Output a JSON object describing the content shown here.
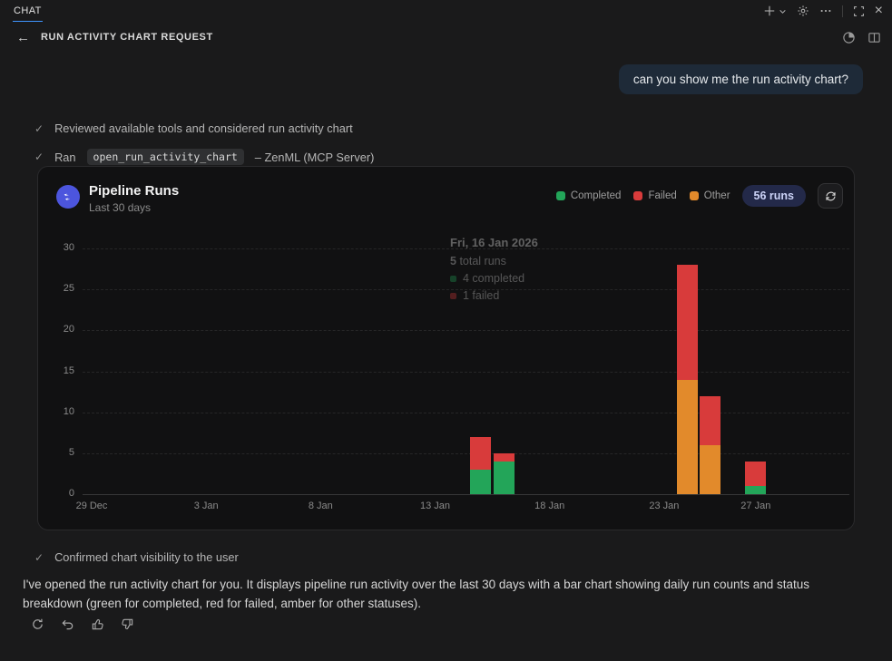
{
  "ui": {
    "colors": {
      "accent": "#3f95ff",
      "bubble_bg": "#1e2a38",
      "card_bg": "#111112",
      "badge_bg": "#232949",
      "badge_text": "#ccd3f7"
    }
  },
  "tabbar": {
    "tab": "CHAT"
  },
  "header": {
    "title": "RUN ACTIVITY CHART REQUEST",
    "back_icon": "←"
  },
  "chat": {
    "user_message": "can you show me the run activity chart?",
    "steps": {
      "0": {
        "text": "Reviewed available tools and considered run activity chart"
      },
      "1": {
        "prefix": "Ran",
        "code": "open_run_activity_chart",
        "suffix": "– ZenML (MCP Server)"
      },
      "2": {
        "text": "Confirmed chart visibility to the user"
      }
    },
    "assistant_message": "I've opened the run activity chart for you. It displays pipeline run activity over the last 30 days with a bar chart showing daily run counts and status breakdown (green for completed, red for failed, amber for other statuses).",
    "check_glyph": "✓"
  },
  "chart_data": {
    "type": "bar",
    "stacked": true,
    "title": "Pipeline Runs",
    "subtitle": "Last 30 days",
    "total_badge": "56 runs",
    "legend": [
      {
        "label": "Completed",
        "key": "completed",
        "color": "#23a559"
      },
      {
        "label": "Failed",
        "key": "failed",
        "color": "#d83b3b"
      },
      {
        "label": "Other",
        "key": "other",
        "color": "#e28a2b"
      }
    ],
    "colors": {
      "completed": "#23a559",
      "failed": "#d83b3b",
      "other": "#e28a2b"
    },
    "ylim": [
      0,
      30
    ],
    "y_ticks": [
      0,
      5,
      10,
      15,
      20,
      25,
      30
    ],
    "x_ticks": [
      {
        "label": "29 Dec",
        "day": 0
      },
      {
        "label": "3 Jan",
        "day": 5
      },
      {
        "label": "8 Jan",
        "day": 10
      },
      {
        "label": "13 Jan",
        "day": 15
      },
      {
        "label": "18 Jan",
        "day": 20
      },
      {
        "label": "23 Jan",
        "day": 25
      },
      {
        "label": "27 Jan",
        "day": 29
      }
    ],
    "bars": [
      {
        "date": "15 Jan",
        "day": 17,
        "segments": [
          {
            "status": "completed",
            "value": 3
          },
          {
            "status": "failed",
            "value": 4
          }
        ]
      },
      {
        "date": "16 Jan",
        "day": 18,
        "segments": [
          {
            "status": "completed",
            "value": 4
          },
          {
            "status": "failed",
            "value": 1
          }
        ]
      },
      {
        "date": "24 Jan",
        "day": 26,
        "segments": [
          {
            "status": "other",
            "value": 14
          },
          {
            "status": "failed",
            "value": 14
          }
        ]
      },
      {
        "date": "25 Jan",
        "day": 27,
        "segments": [
          {
            "status": "other",
            "value": 6
          },
          {
            "status": "failed",
            "value": 6
          }
        ]
      },
      {
        "date": "27 Jan",
        "day": 29,
        "segments": [
          {
            "status": "completed",
            "value": 1
          },
          {
            "status": "failed",
            "value": 3
          }
        ]
      }
    ],
    "tooltip": {
      "title": "Fri, 16 Jan 2026",
      "total_value": "5",
      "total_label": "total runs",
      "items": [
        {
          "color": "#23a559",
          "label": "4 completed"
        },
        {
          "color": "#d83b3b",
          "label": "1 failed"
        }
      ]
    }
  }
}
